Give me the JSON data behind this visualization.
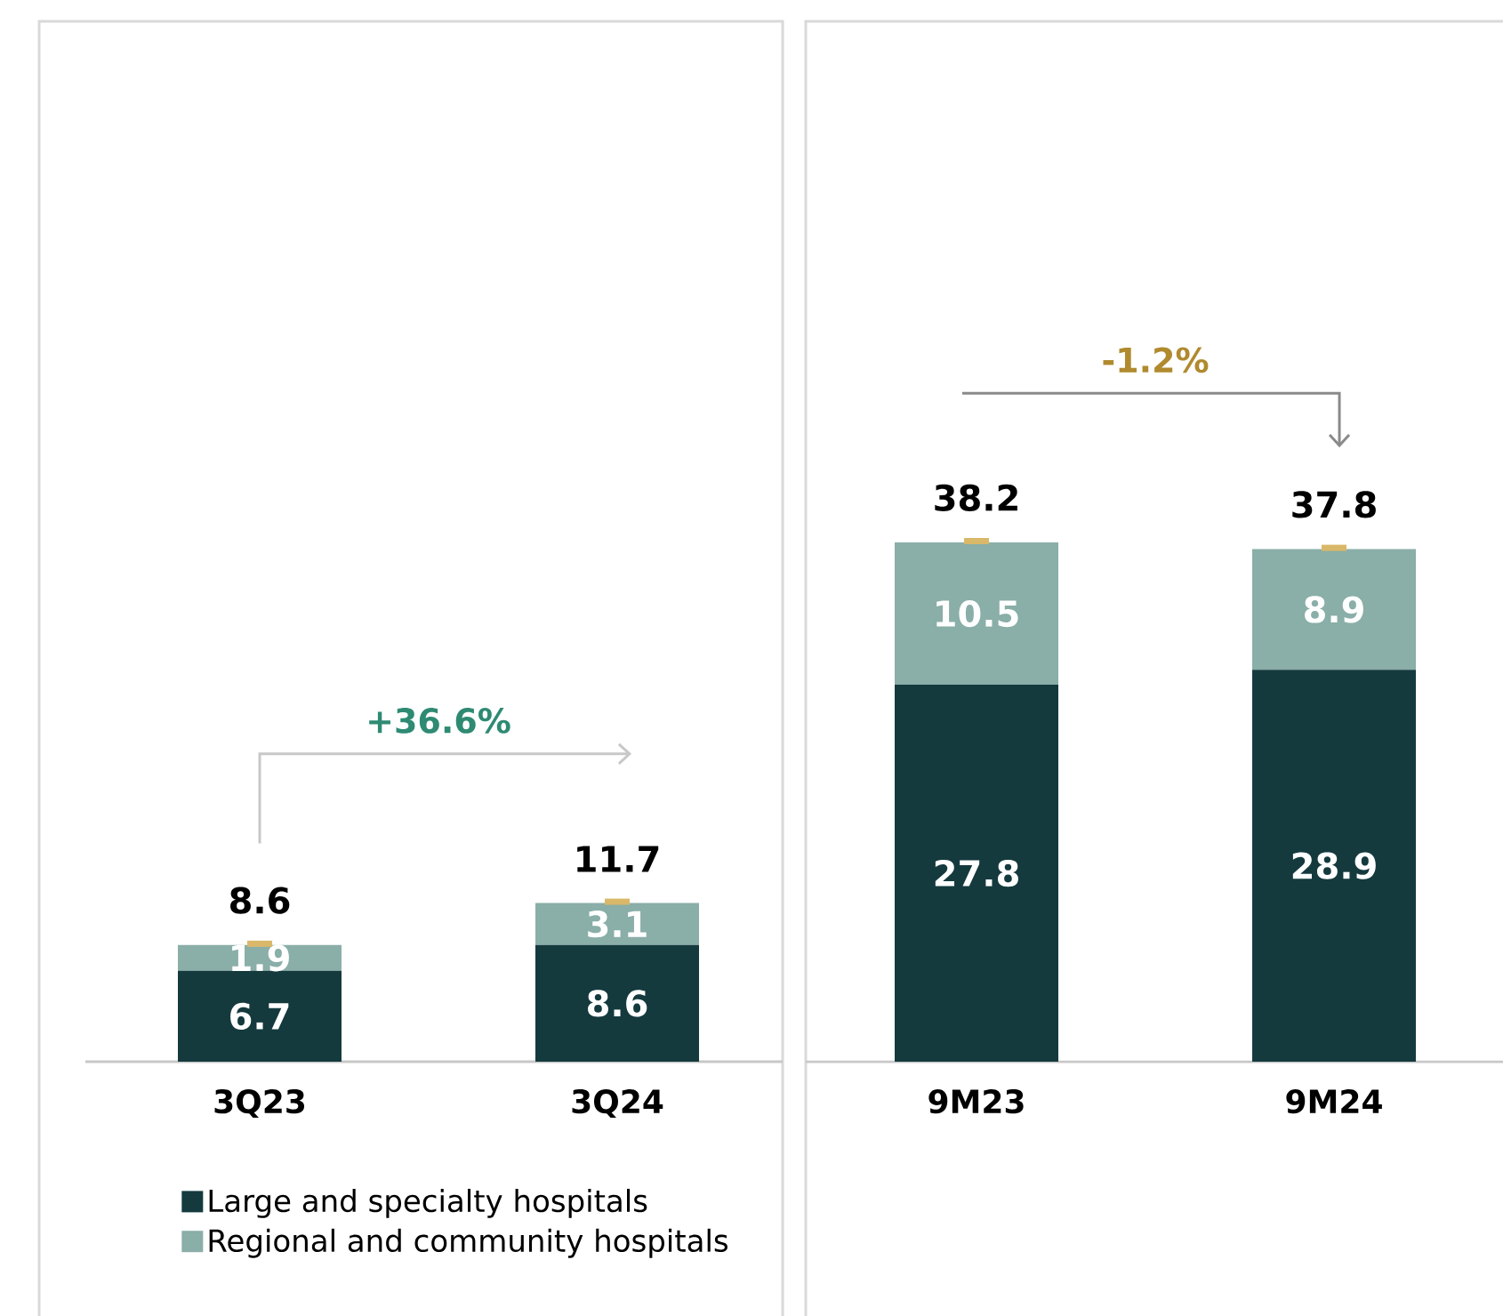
{
  "chart_data": [
    {
      "type": "bar",
      "stacked": true,
      "categories": [
        "3Q23",
        "3Q24"
      ],
      "tick_labels": "x",
      "legend": "bottom left",
      "series": [
        {
          "name": "Large and specialty hospitals",
          "color": "#143a3e",
          "values": [
            6.7,
            8.6
          ],
          "value_labels": [
            "6.7",
            "8.6"
          ]
        },
        {
          "name": "Regional and community hospitals",
          "color": "#8aaea8",
          "values": [
            1.9,
            3.1
          ],
          "value_labels": [
            "1.9",
            "3.1"
          ]
        }
      ],
      "totals": [
        "8.6",
        "11.7"
      ],
      "annotations": [
        "+36.6%"
      ]
    },
    {
      "type": "bar",
      "stacked": true,
      "categories": [
        "9M23",
        "9M24"
      ],
      "tick_labels": "x",
      "series": [
        {
          "color": "#143a3e",
          "values": [
            27.8,
            28.9
          ],
          "value_labels": [
            "27.8",
            "28.9"
          ]
        },
        {
          "color": "#8aaea8",
          "values": [
            10.5,
            8.9
          ],
          "value_labels": [
            "10.5",
            "8.9"
          ]
        }
      ],
      "totals": [
        "38.2",
        "37.8"
      ],
      "annotations": [
        "-1.2%"
      ]
    }
  ]
}
